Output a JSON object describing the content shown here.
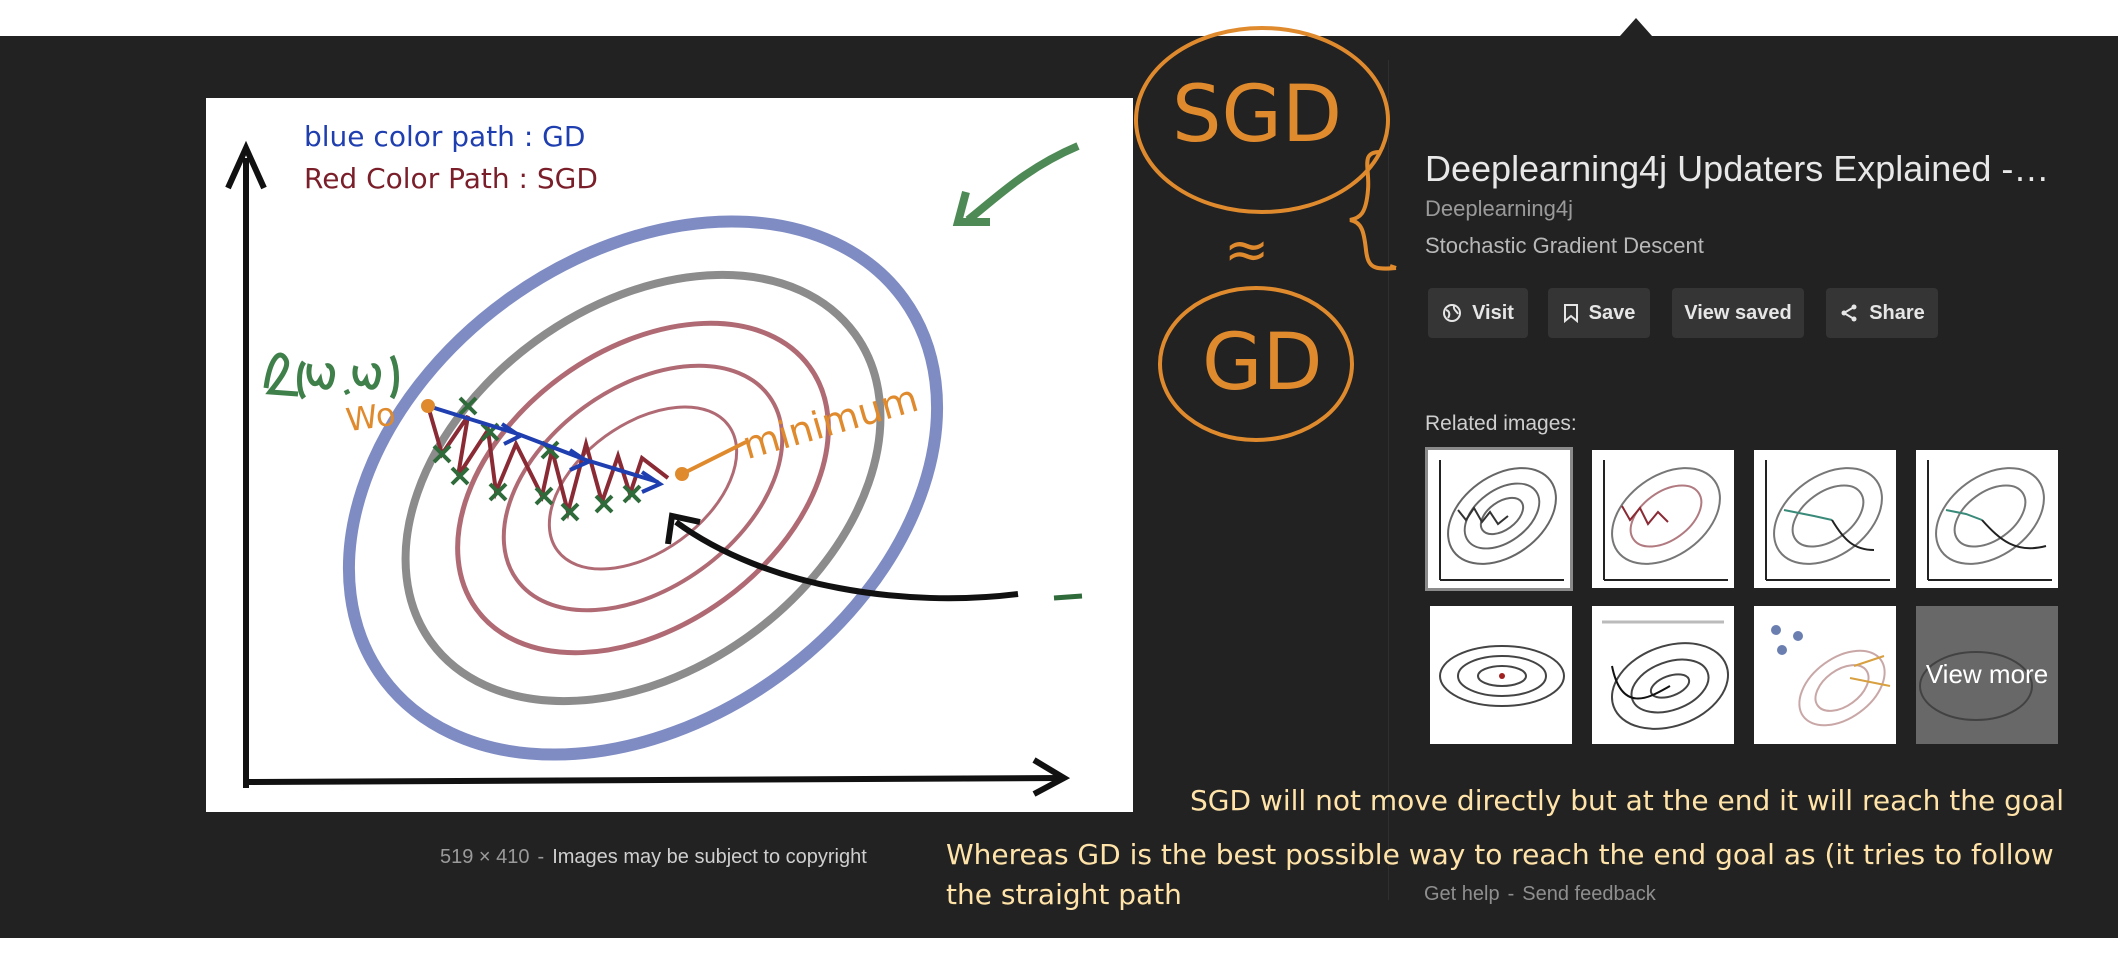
{
  "image_meta": {
    "dimensions": "519 × 410",
    "separator": "-",
    "copyright": "Images may be subject to copyright"
  },
  "image_annotations": {
    "legend_gd": "blue color path : GD",
    "legend_sgd": "Red Color Path : SGD",
    "start_label": "Wo",
    "minimum_label": "minimum"
  },
  "result": {
    "title": "Deeplearning4j Updaters Explained -…",
    "source": "Deeplearning4j",
    "subtitle": "Stochastic Gradient Descent"
  },
  "actions": {
    "visit": "Visit",
    "save": "Save",
    "view_saved": "View saved",
    "share": "Share"
  },
  "related": {
    "heading": "Related images:",
    "view_more": "View more"
  },
  "overlay": {
    "sgd": "SGD",
    "approx": "≈",
    "gd": "GD",
    "caption_1": "SGD will not move directly but at the end it will reach the goal",
    "caption_2_line1": "Whereas GD is the best possible way to reach the end goal as (it tries to follow",
    "caption_2_line2": "the straight path"
  },
  "footer": {
    "help": "Get help",
    "separator": "-",
    "feedback": "Send feedback"
  },
  "colors": {
    "panel_bg": "#222222",
    "button_bg": "#353535",
    "ink_orange": "#e08a2e",
    "caption_text": "#ffe3a8",
    "gd_blue": "#1f3fb0",
    "sgd_red": "#7a1f2a"
  },
  "icons": {
    "visit": "globe-icon",
    "save": "bookmark-icon",
    "share": "share-icon"
  }
}
